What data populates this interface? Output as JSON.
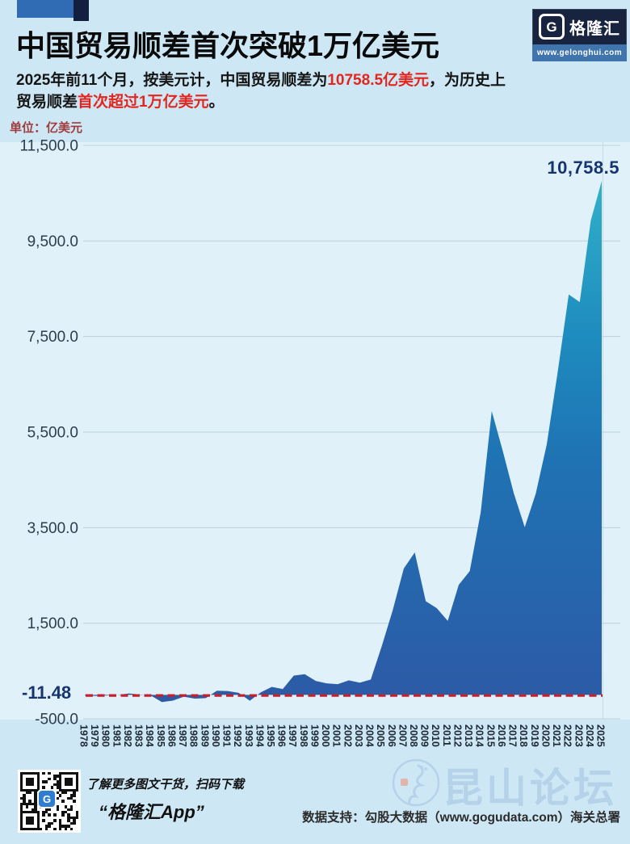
{
  "header": {
    "title": "中国贸易顺差首次突破1万亿美元",
    "logo": {
      "g": "G",
      "brand": "格隆汇",
      "url": "www.gelonghui.com"
    },
    "subtitle": {
      "part1": "2025年前11个月，按美元计，中国贸易顺差为",
      "highlight1": "10758.5亿美元",
      "part2": "，为历史上",
      "part3": "贸易顺差",
      "highlight2": "首次超过1万亿美元",
      "part4": "。",
      "highlight_color": "#e3261d"
    }
  },
  "chart_data": {
    "type": "area",
    "series_name": "中国贸易顺差",
    "unit_label": "单位：亿美元",
    "x": [
      1978,
      1979,
      1980,
      1981,
      1982,
      1983,
      1984,
      1985,
      1986,
      1987,
      1988,
      1989,
      1990,
      1991,
      1992,
      1993,
      1994,
      1995,
      1996,
      1997,
      1998,
      1999,
      2000,
      2001,
      2002,
      2003,
      2004,
      2005,
      2006,
      2007,
      2008,
      2009,
      2010,
      2011,
      2012,
      2013,
      2014,
      2015,
      2016,
      2017,
      2018,
      2019,
      2020,
      2021,
      2022,
      2023,
      2024,
      2025
    ],
    "values": [
      -11.4,
      -20.1,
      -12.8,
      0.1,
      30.4,
      8.4,
      -12.7,
      -149.0,
      -119.7,
      -37.8,
      -77.6,
      -66.0,
      87.5,
      81.2,
      43.5,
      -122.2,
      54.0,
      167.0,
      122.2,
      404.2,
      434.8,
      292.3,
      241.1,
      225.4,
      304.3,
      255.3,
      321.0,
      1020.1,
      1775.2,
      2643.4,
      2981.2,
      1961.1,
      1815.1,
      1549.0,
      2303.1,
      2590.2,
      3824.6,
      5939.0,
      5107.0,
      4225.0,
      3509.5,
      4210.7,
      5239.9,
      6764.3,
      8380.0,
      8221.0,
      9921.0,
      10758.5
    ],
    "ylim": [
      -500,
      11500
    ],
    "ytick_values": [
      11500,
      9500,
      7500,
      5500,
      3500,
      1500,
      -500
    ],
    "ytick_labels": [
      "11,500.0",
      "9,500.0",
      "7,500.0",
      "5,500.0",
      "3,500.0",
      "1,500.0",
      "-500.0"
    ],
    "grid": true,
    "baseline": 0,
    "legend_position": "none",
    "peak_annotation": {
      "label": "10,758.5",
      "value": 10758.5,
      "x": 2025
    },
    "reference_line": {
      "label": "-11.48",
      "value": -11.48,
      "color": "#c7202c",
      "style": "dashed"
    },
    "area_gradient": [
      "#31b0ca",
      "#1e8cbe",
      "#1f72b3",
      "#2c5ba6"
    ]
  },
  "watermark": {
    "g": "G",
    "brand": "格隆汇",
    "brand_url": "www.gelonghui.com",
    "partner": "勾股大数据",
    "partner_url": "www.gogudata.com"
  },
  "footer": {
    "qr_caption": "了解更多图文干货，扫码下载",
    "app_name": "“格隆汇App”",
    "datasource": "数据支持：勾股大数据（www.gogudata.com）海关总署",
    "forum_watermark": "昆山论坛"
  }
}
